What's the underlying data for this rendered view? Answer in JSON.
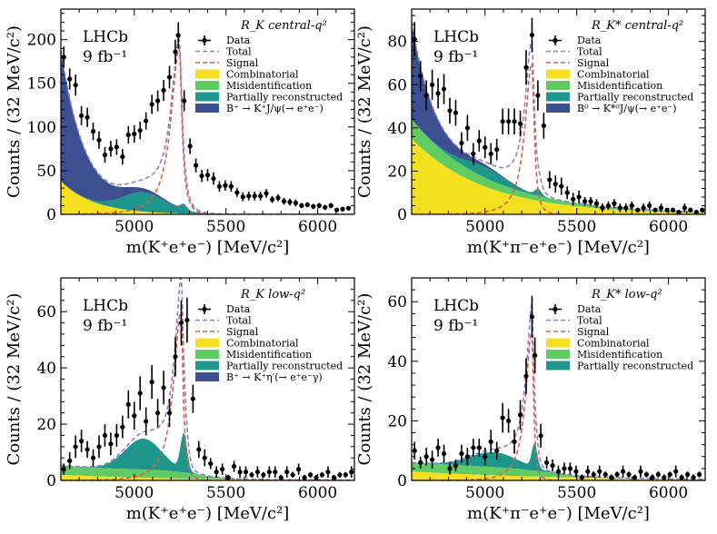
{
  "colors": {
    "combinatorial": "#f5e020",
    "misid": "#5fcb62",
    "partial": "#1f968b",
    "jpsi": "#3b4f91",
    "total": "#8c7ed6",
    "signal": "#d9604a",
    "data": "#000000"
  },
  "chart_data": [
    {
      "type": "area",
      "title": "R_K central-q²",
      "experiment": "LHCb",
      "luminosity": "9 fb⁻¹",
      "xlabel": "m(K⁺e⁺e⁻) [MeV/c²]",
      "ylabel": "Counts / (32 MeV/c²)",
      "xlim": [
        4600,
        6200
      ],
      "ylim": [
        0,
        235
      ],
      "xticks": [
        "5000",
        "5500",
        "6000"
      ],
      "yticks": [
        "0",
        "50",
        "100",
        "150",
        "200"
      ],
      "legend": [
        "Data",
        "Total",
        "Signal",
        "Combinatorial",
        "Misidentification",
        "Partially reconstructed",
        "B⁺ → K⁺J/ψ(→ e⁺e⁻)"
      ],
      "legend_position": "top-right",
      "params": {
        "comb": [
          38,
          180
        ],
        "misid": [
          0.004,
          0.02
        ],
        "partial": [
          22,
          5050,
          120
        ],
        "peak": [
          6,
          5270,
          18
        ],
        "jpsi": [
          150,
          130
        ],
        "signal": [
          190,
          5245,
          40,
          120
        ]
      },
      "points": [
        [
          4616,
          180,
          12
        ],
        [
          4648,
          155,
          12
        ],
        [
          4680,
          148,
          12
        ],
        [
          4712,
          113,
          11
        ],
        [
          4744,
          111,
          11
        ],
        [
          4776,
          95,
          10
        ],
        [
          4808,
          85,
          10
        ],
        [
          4840,
          68,
          9
        ],
        [
          4872,
          75,
          9
        ],
        [
          4904,
          77,
          9
        ],
        [
          4936,
          66,
          9
        ],
        [
          4968,
          91,
          10
        ],
        [
          5000,
          92,
          10
        ],
        [
          5032,
          96,
          10
        ],
        [
          5064,
          107,
          10
        ],
        [
          5096,
          126,
          11
        ],
        [
          5128,
          130,
          12
        ],
        [
          5160,
          142,
          12
        ],
        [
          5192,
          157,
          13
        ],
        [
          5224,
          186,
          14
        ],
        [
          5240,
          205,
          15
        ],
        [
          5272,
          130,
          12
        ],
        [
          5304,
          78,
          9
        ],
        [
          5336,
          56,
          8
        ],
        [
          5368,
          44,
          7
        ],
        [
          5400,
          45,
          7
        ],
        [
          5432,
          41,
          7
        ],
        [
          5464,
          32,
          6
        ],
        [
          5496,
          33,
          6
        ],
        [
          5528,
          32,
          6
        ],
        [
          5560,
          25,
          5
        ],
        [
          5592,
          20,
          5
        ],
        [
          5624,
          21,
          5
        ],
        [
          5656,
          21,
          5
        ],
        [
          5688,
          21,
          5
        ],
        [
          5720,
          24,
          5
        ],
        [
          5752,
          17,
          4
        ],
        [
          5784,
          19,
          4
        ],
        [
          5816,
          15,
          4
        ],
        [
          5848,
          14,
          4
        ],
        [
          5880,
          13,
          4
        ],
        [
          5912,
          10,
          3
        ],
        [
          5944,
          11,
          3
        ],
        [
          5976,
          9,
          3
        ],
        [
          6008,
          10,
          3
        ],
        [
          6040,
          8,
          3
        ],
        [
          6072,
          10,
          3
        ],
        [
          6104,
          5,
          2
        ],
        [
          6136,
          6,
          2
        ],
        [
          6168,
          7,
          2
        ]
      ]
    },
    {
      "type": "area",
      "title": "R_K* central-q²",
      "experiment": "LHCb",
      "luminosity": "9 fb⁻¹",
      "xlabel": "m(K⁺π⁻e⁺e⁻) [MeV/c²]",
      "ylabel": "Counts / (32 MeV/c²)",
      "xlim": [
        4600,
        6200
      ],
      "ylim": [
        0,
        95
      ],
      "xticks": [
        "5000",
        "5500",
        "6000"
      ],
      "yticks": [
        "0",
        "20",
        "40",
        "60",
        "80"
      ],
      "legend": [
        "Data",
        "Total",
        "Signal",
        "Combinatorial",
        "Misidentification",
        "Partially reconstructed",
        "B⁰ → K*⁰J/ψ(→ e⁺e⁻)"
      ],
      "legend_position": "top-right",
      "params": {
        "comb": [
          35,
          400
        ],
        "misid": [
          9,
          500
        ],
        "partial": [
          5,
          5000,
          120
        ],
        "peak": [
          3,
          5290,
          18
        ],
        "jpsi": [
          45,
          110
        ],
        "signal": [
          70,
          5255,
          35,
          100
        ]
      },
      "points": [
        [
          4616,
          81,
          8
        ],
        [
          4648,
          64,
          7
        ],
        [
          4680,
          55,
          7
        ],
        [
          4712,
          60,
          7
        ],
        [
          4744,
          56,
          7
        ],
        [
          4776,
          58,
          7
        ],
        [
          4808,
          48,
          6
        ],
        [
          4840,
          47,
          6
        ],
        [
          4872,
          33,
          5
        ],
        [
          4904,
          40,
          6
        ],
        [
          4936,
          28,
          5
        ],
        [
          4968,
          34,
          5
        ],
        [
          5000,
          31,
          5
        ],
        [
          5032,
          28,
          5
        ],
        [
          5064,
          30,
          5
        ],
        [
          5096,
          43,
          6
        ],
        [
          5128,
          43,
          6
        ],
        [
          5160,
          43,
          6
        ],
        [
          5192,
          42,
          6
        ],
        [
          5224,
          68,
          8
        ],
        [
          5256,
          83,
          8
        ],
        [
          5288,
          55,
          7
        ],
        [
          5320,
          41,
          6
        ],
        [
          5352,
          16,
          4
        ],
        [
          5384,
          14,
          4
        ],
        [
          5416,
          13,
          4
        ],
        [
          5448,
          10,
          3
        ],
        [
          5480,
          7,
          3
        ],
        [
          5512,
          8,
          3
        ],
        [
          5544,
          6,
          2
        ],
        [
          5576,
          6,
          2
        ],
        [
          5608,
          5,
          2
        ],
        [
          5640,
          3,
          2
        ],
        [
          5672,
          4,
          2
        ],
        [
          5704,
          5,
          2
        ],
        [
          5736,
          3,
          2
        ],
        [
          5768,
          3,
          2
        ],
        [
          5800,
          4,
          2
        ],
        [
          5832,
          2,
          1
        ],
        [
          5864,
          3,
          2
        ],
        [
          5896,
          4,
          2
        ],
        [
          5928,
          2,
          1
        ],
        [
          5960,
          3,
          2
        ],
        [
          5992,
          2,
          1
        ],
        [
          6024,
          2,
          1
        ],
        [
          6056,
          1,
          1
        ],
        [
          6088,
          3,
          2
        ],
        [
          6120,
          2,
          1
        ],
        [
          6152,
          1,
          1
        ],
        [
          6184,
          2,
          1
        ]
      ]
    },
    {
      "type": "area",
      "title": "R_K low-q²",
      "experiment": "LHCb",
      "luminosity": "9 fb⁻¹",
      "xlabel": "m(K⁺e⁺e⁻) [MeV/c²]",
      "ylabel": "Counts / (32 MeV/c²)",
      "xlim": [
        4600,
        6200
      ],
      "ylim": [
        0,
        72
      ],
      "xticks": [
        "5000",
        "5500",
        "6000"
      ],
      "yticks": [
        "0",
        "20",
        "40",
        "60"
      ],
      "legend": [
        "Data",
        "Total",
        "Signal",
        "Combinatorial",
        "Misidentification",
        "Partially reconstructed",
        "B⁺ → K⁺η′(→ e⁺e⁻γ)"
      ],
      "legend_position": "top-right",
      "params": {
        "comb": [
          2,
          600
        ],
        "misid": [
          3,
          0.012
        ],
        "partial": [
          11,
          5050,
          100
        ],
        "peak": [
          13,
          5270,
          18
        ],
        "jpsi": [
          0.3,
          150
        ],
        "signal": [
          60,
          5255,
          30,
          110
        ]
      },
      "points": [
        [
          4616,
          4,
          2
        ],
        [
          4648,
          7,
          3
        ],
        [
          4680,
          12,
          4
        ],
        [
          4712,
          14,
          4
        ],
        [
          4744,
          11,
          3
        ],
        [
          4776,
          8,
          3
        ],
        [
          4808,
          12,
          4
        ],
        [
          4840,
          16,
          4
        ],
        [
          4872,
          13,
          4
        ],
        [
          4904,
          16,
          4
        ],
        [
          4936,
          19,
          4
        ],
        [
          4968,
          27,
          5
        ],
        [
          5000,
          23,
          5
        ],
        [
          5032,
          31,
          6
        ],
        [
          5064,
          21,
          5
        ],
        [
          5096,
          35,
          6
        ],
        [
          5128,
          24,
          5
        ],
        [
          5160,
          33,
          6
        ],
        [
          5192,
          24,
          5
        ],
        [
          5224,
          44,
          7
        ],
        [
          5256,
          56,
          8
        ],
        [
          5288,
          57,
          8
        ],
        [
          5320,
          29,
          5
        ],
        [
          5352,
          11,
          3
        ],
        [
          5384,
          8,
          3
        ],
        [
          5416,
          6,
          2
        ],
        [
          5448,
          3,
          2
        ],
        [
          5480,
          4,
          2
        ],
        [
          5512,
          1,
          1
        ],
        [
          5544,
          5,
          2
        ],
        [
          5576,
          3,
          2
        ],
        [
          5608,
          3,
          2
        ],
        [
          5640,
          2,
          1
        ],
        [
          5672,
          3,
          2
        ],
        [
          5704,
          2,
          1
        ],
        [
          5736,
          3,
          2
        ],
        [
          5768,
          3,
          2
        ],
        [
          5800,
          1,
          1
        ],
        [
          5832,
          3,
          2
        ],
        [
          5864,
          2,
          1
        ],
        [
          5896,
          4,
          2
        ],
        [
          5928,
          1,
          1
        ],
        [
          5960,
          2,
          1
        ],
        [
          5992,
          1,
          1
        ],
        [
          6024,
          2,
          1
        ],
        [
          6056,
          3,
          2
        ],
        [
          6088,
          1,
          1
        ],
        [
          6120,
          2,
          1
        ],
        [
          6152,
          2,
          1
        ],
        [
          6184,
          3,
          2
        ]
      ]
    },
    {
      "type": "area",
      "title": "R_K* low-q²",
      "experiment": "LHCb",
      "luminosity": "9 fb⁻¹",
      "xlabel": "m(K⁺π⁻e⁺e⁻) [MeV/c²]",
      "ylabel": "Counts / (32 MeV/c²)",
      "xlim": [
        4600,
        6200
      ],
      "ylim": [
        0,
        68
      ],
      "xticks": [
        "5000",
        "5500",
        "6000"
      ],
      "yticks": [
        "0",
        "20",
        "40",
        "60"
      ],
      "legend": [
        "Data",
        "Total",
        "Signal",
        "Combinatorial",
        "Misidentification",
        "Partially reconstructed"
      ],
      "legend_position": "top-right",
      "params": {
        "comb": [
          3,
          800
        ],
        "misid": [
          3,
          0.008
        ],
        "partial": [
          5,
          5050,
          130
        ],
        "peak": [
          8,
          5270,
          15
        ],
        "jpsi": [
          0,
          150
        ],
        "signal": [
          50,
          5255,
          25,
          90
        ]
      },
      "points": [
        [
          4616,
          10,
          3
        ],
        [
          4648,
          6,
          2
        ],
        [
          4680,
          8,
          3
        ],
        [
          4712,
          7,
          3
        ],
        [
          4744,
          11,
          3
        ],
        [
          4776,
          9,
          3
        ],
        [
          4808,
          4,
          2
        ],
        [
          4840,
          5,
          2
        ],
        [
          4872,
          9,
          3
        ],
        [
          4904,
          8,
          3
        ],
        [
          4936,
          11,
          3
        ],
        [
          4968,
          11,
          3
        ],
        [
          5000,
          8,
          3
        ],
        [
          5032,
          13,
          4
        ],
        [
          5064,
          10,
          3
        ],
        [
          5096,
          21,
          5
        ],
        [
          5128,
          20,
          4
        ],
        [
          5160,
          13,
          4
        ],
        [
          5192,
          22,
          5
        ],
        [
          5224,
          35,
          6
        ],
        [
          5256,
          55,
          7
        ],
        [
          5272,
          42,
          6
        ],
        [
          5304,
          15,
          4
        ],
        [
          5336,
          6,
          2
        ],
        [
          5368,
          5,
          2
        ],
        [
          5400,
          3,
          2
        ],
        [
          5432,
          4,
          2
        ],
        [
          5464,
          4,
          2
        ],
        [
          5496,
          3,
          2
        ],
        [
          5528,
          1,
          1
        ],
        [
          5560,
          3,
          2
        ],
        [
          5592,
          2,
          1
        ],
        [
          5624,
          3,
          2
        ],
        [
          5656,
          2,
          1
        ],
        [
          5688,
          1,
          1
        ],
        [
          5720,
          2,
          1
        ],
        [
          5752,
          3,
          2
        ],
        [
          5784,
          2,
          1
        ],
        [
          5816,
          1,
          1
        ],
        [
          5848,
          3,
          2
        ],
        [
          5880,
          2,
          1
        ],
        [
          5912,
          1,
          1
        ],
        [
          5944,
          2,
          1
        ],
        [
          5976,
          1,
          1
        ],
        [
          6008,
          2,
          1
        ],
        [
          6040,
          3,
          2
        ],
        [
          6072,
          1,
          1
        ],
        [
          6104,
          2,
          1
        ],
        [
          6136,
          1,
          1
        ],
        [
          6168,
          2,
          1
        ]
      ]
    }
  ]
}
